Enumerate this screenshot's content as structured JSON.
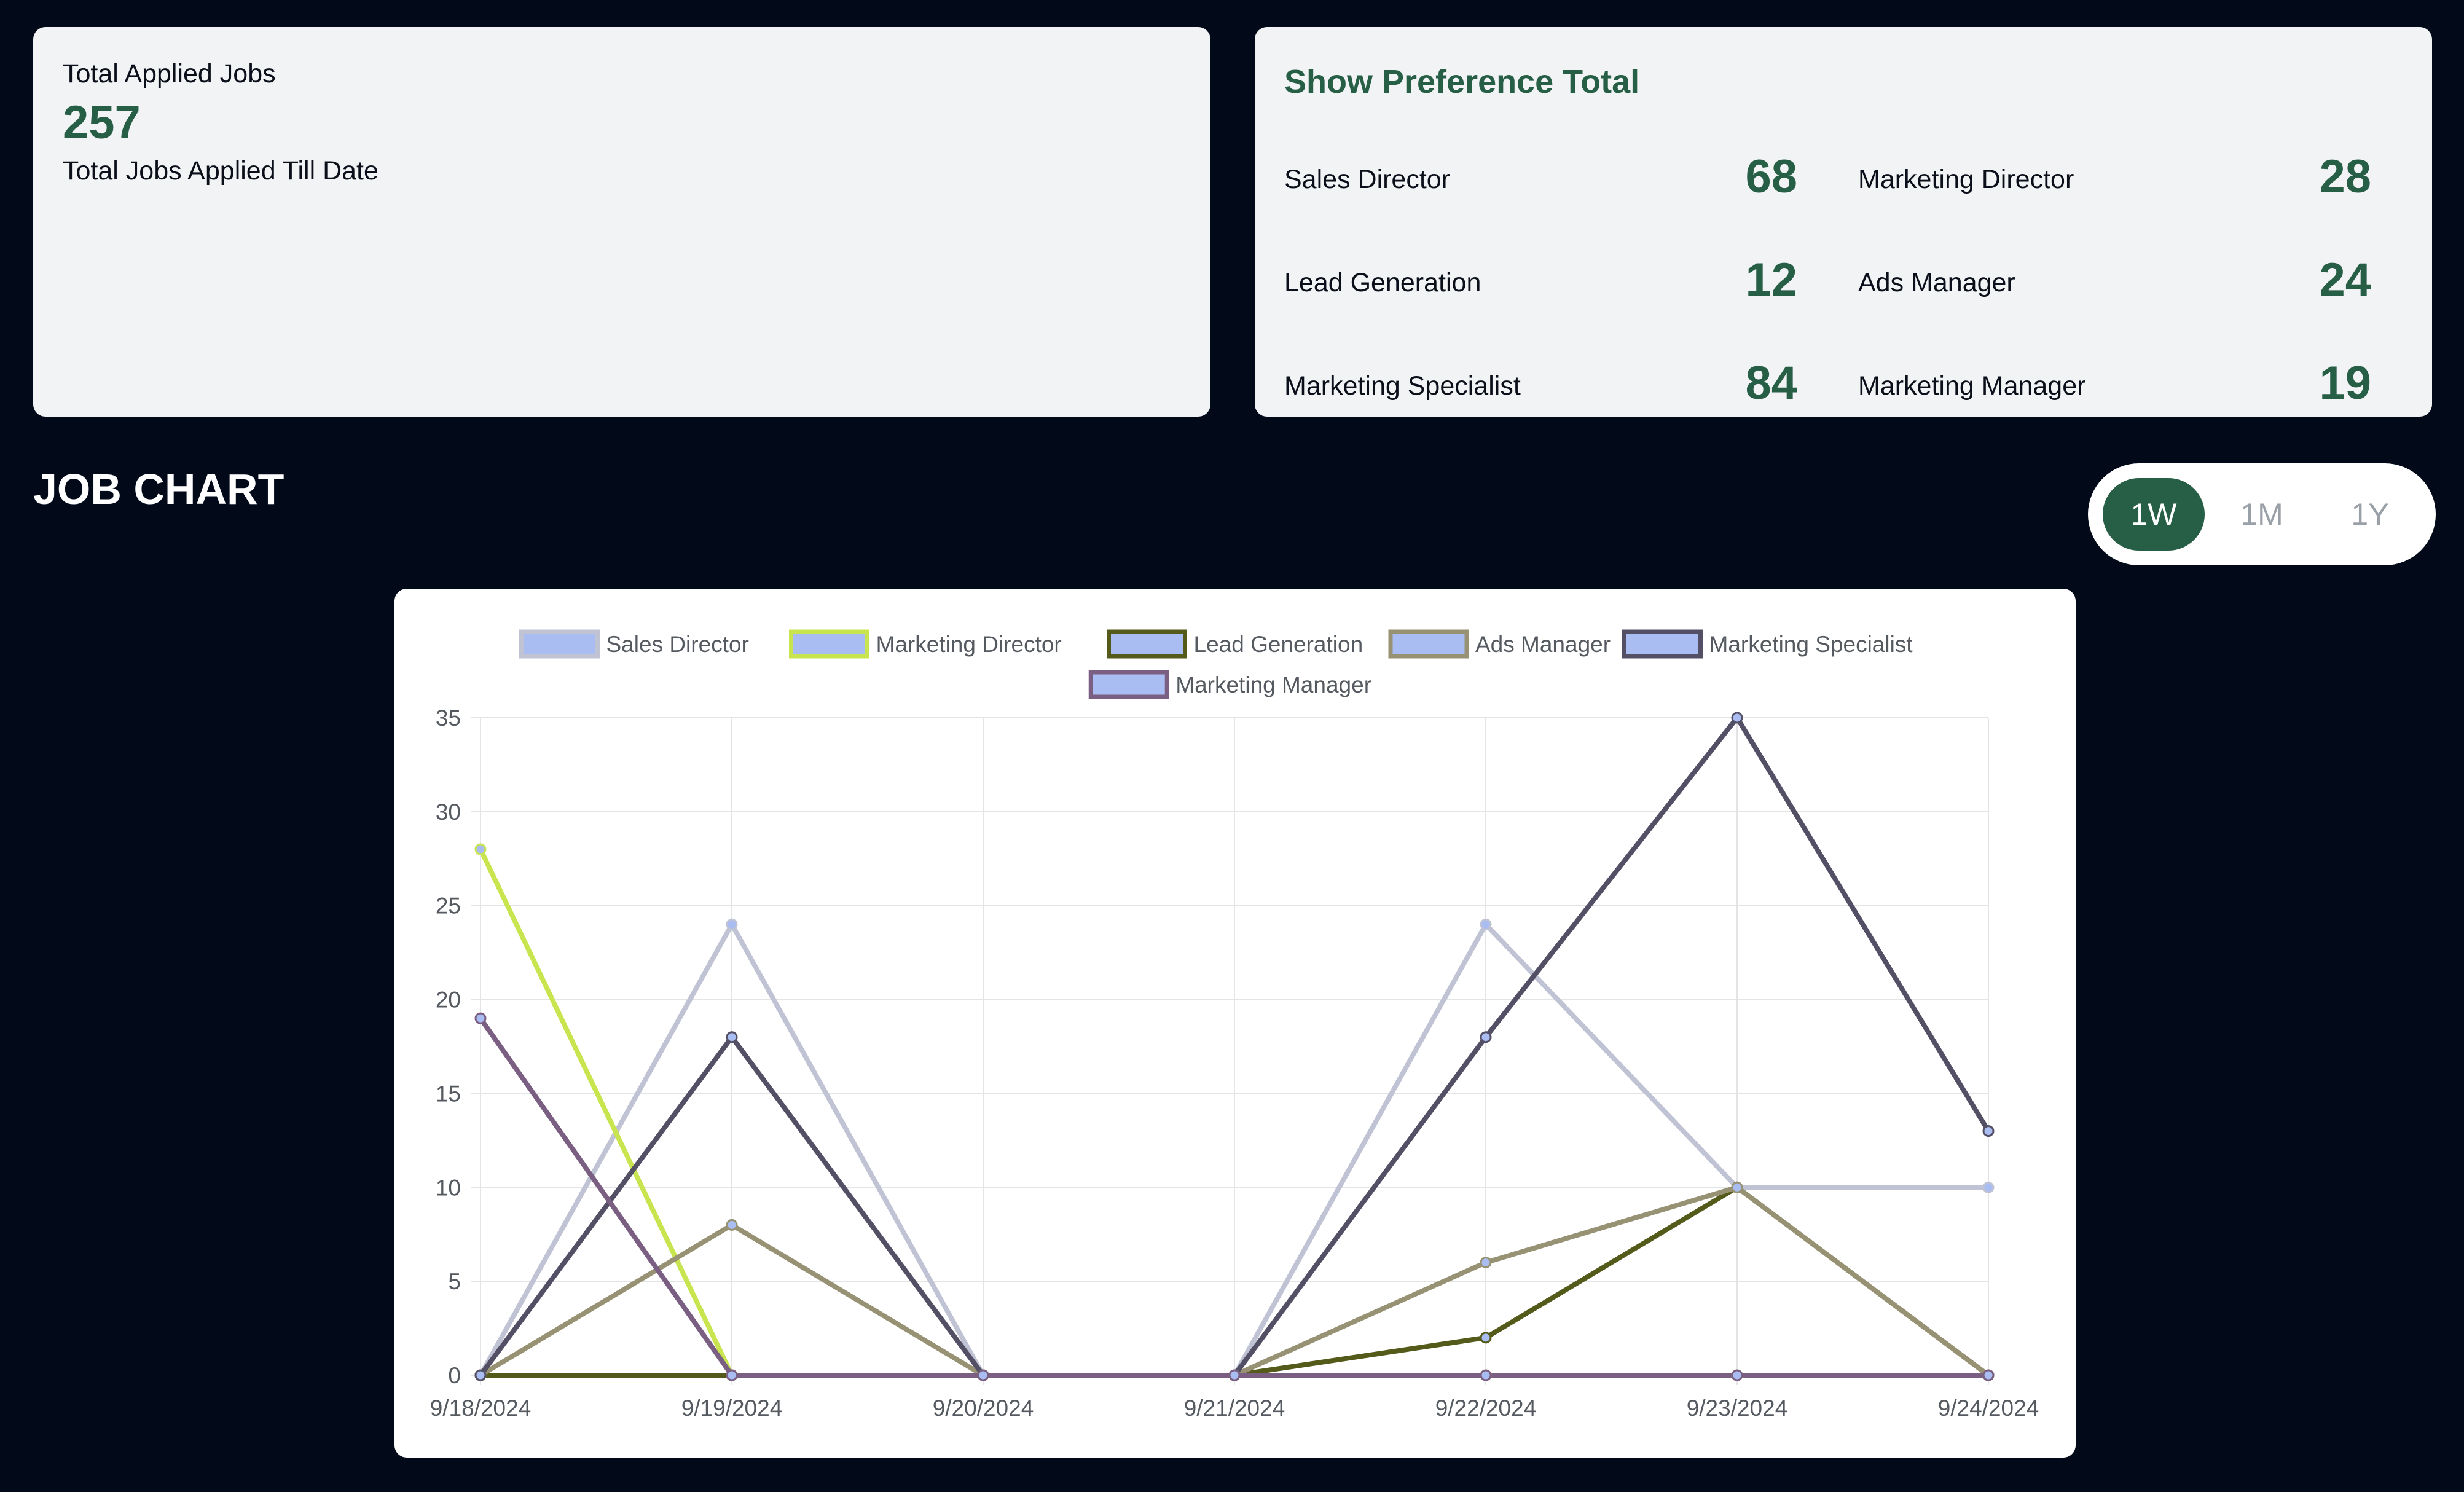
{
  "summary": {
    "title": "Total Applied Jobs",
    "total": "257",
    "subtitle": "Total Jobs Applied Till Date"
  },
  "preferences": {
    "title": "Show Preference Total",
    "items": [
      {
        "label": "Sales Director",
        "value": "68"
      },
      {
        "label": "Marketing Director",
        "value": "28"
      },
      {
        "label": "Lead Generation",
        "value": "12"
      },
      {
        "label": "Ads Manager",
        "value": "24"
      },
      {
        "label": "Marketing Specialist",
        "value": "84"
      },
      {
        "label": "Marketing Manager",
        "value": "19"
      }
    ]
  },
  "section_title": "JOB CHART",
  "range_toggle": {
    "options": [
      "1W",
      "1M",
      "1Y"
    ],
    "selected": "1W"
  },
  "chart_data": {
    "type": "line",
    "x": [
      "9/18/2024",
      "9/19/2024",
      "9/20/2024",
      "9/21/2024",
      "9/22/2024",
      "9/23/2024",
      "9/24/2024"
    ],
    "ylim": [
      0,
      35
    ],
    "yticks": [
      0,
      5,
      10,
      15,
      20,
      25,
      30,
      35
    ],
    "grid": true,
    "legend_position": "top",
    "series": [
      {
        "name": "Sales Director",
        "color": "#bfc3d4",
        "fill": "#a9bdf2",
        "values": [
          0,
          24,
          0,
          0,
          24,
          10,
          10
        ]
      },
      {
        "name": "Marketing Director",
        "color": "#c8e44e",
        "fill": "#a9bdf2",
        "values": [
          28,
          0,
          0,
          0,
          0,
          0,
          0
        ]
      },
      {
        "name": "Lead Generation",
        "color": "#535a1a",
        "fill": "#a9bdf2",
        "values": [
          0,
          0,
          0,
          0,
          2,
          10,
          0
        ]
      },
      {
        "name": "Ads Manager",
        "color": "#979274",
        "fill": "#a9bdf2",
        "values": [
          0,
          8,
          0,
          0,
          6,
          10,
          0
        ]
      },
      {
        "name": "Marketing Specialist",
        "color": "#535066",
        "fill": "#a9bdf2",
        "values": [
          0,
          18,
          0,
          0,
          18,
          35,
          13
        ]
      },
      {
        "name": "Marketing Manager",
        "color": "#7a5f82",
        "fill": "#a9bdf2",
        "values": [
          19,
          0,
          0,
          0,
          0,
          0,
          0
        ]
      }
    ]
  }
}
